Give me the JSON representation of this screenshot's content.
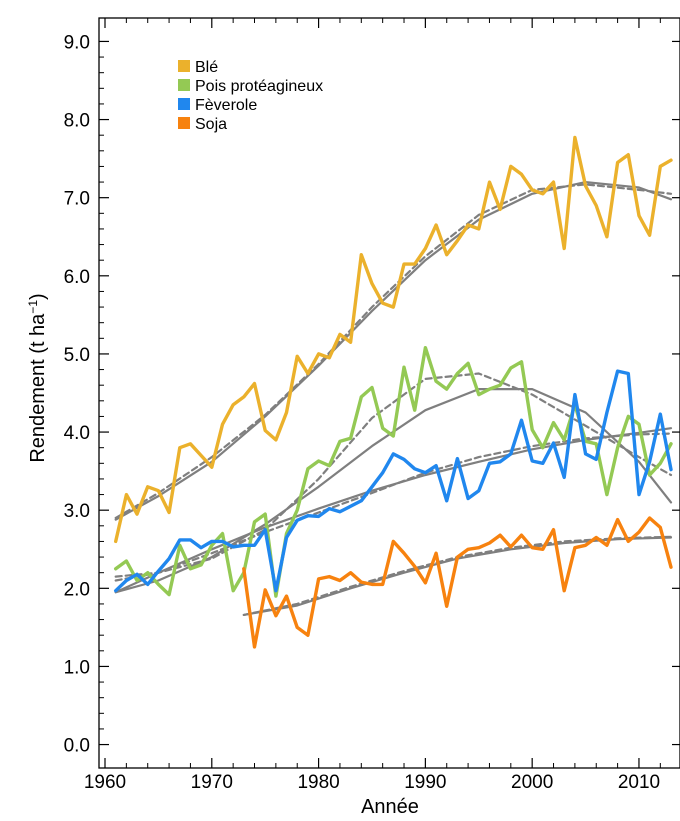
{
  "chart_data": {
    "type": "line",
    "xlabel": "Année",
    "ylabel": "Rendement (t ha",
    "ylabel_superscript": "−1",
    "ylabel_close": ")",
    "xlim": [
      1960,
      2013
    ],
    "ylim": [
      -0.3,
      9.3
    ],
    "x_ticks": [
      1960,
      1970,
      1980,
      1990,
      2000,
      2010
    ],
    "x_tick_labels": [
      "1960",
      "1970",
      "1980",
      "1990",
      "2000",
      "2010"
    ],
    "y_ticks": [
      0,
      1,
      2,
      3,
      4,
      5,
      6,
      7,
      8,
      9
    ],
    "y_tick_labels": [
      "0.0",
      "1.0",
      "2.0",
      "3.0",
      "4.0",
      "5.0",
      "6.0",
      "7.0",
      "8.0",
      "9.0"
    ],
    "grid": false,
    "legend_position": "top-left",
    "trend_color": "#7f7f7f",
    "series": [
      {
        "name": "Blé",
        "color": "#EBB12C",
        "x": [
          1961,
          1962,
          1963,
          1964,
          1965,
          1966,
          1967,
          1968,
          1969,
          1970,
          1971,
          1972,
          1973,
          1974,
          1975,
          1976,
          1977,
          1978,
          1979,
          1980,
          1981,
          1982,
          1983,
          1984,
          1985,
          1986,
          1987,
          1988,
          1989,
          1990,
          1991,
          1992,
          1993,
          1994,
          1995,
          1996,
          1997,
          1998,
          1999,
          2000,
          2001,
          2002,
          2003,
          2004,
          2005,
          2006,
          2007,
          2008,
          2009,
          2010,
          2011,
          2012,
          2013
        ],
        "values": [
          2.6,
          3.2,
          2.95,
          3.3,
          3.25,
          2.97,
          3.8,
          3.85,
          3.7,
          3.55,
          4.1,
          4.35,
          4.45,
          4.62,
          4.02,
          3.9,
          4.25,
          4.97,
          4.75,
          5.0,
          4.95,
          5.25,
          5.15,
          6.27,
          5.9,
          5.65,
          5.6,
          6.15,
          6.15,
          6.35,
          6.65,
          6.27,
          6.45,
          6.65,
          6.6,
          7.2,
          6.85,
          7.4,
          7.3,
          7.1,
          7.05,
          7.2,
          6.35,
          7.77,
          7.15,
          6.9,
          6.5,
          7.45,
          7.55,
          6.77,
          6.52,
          7.4,
          7.48
        ]
      },
      {
        "name": "Pois protéagineux",
        "color": "#94C954",
        "x": [
          1961,
          1962,
          1963,
          1964,
          1965,
          1966,
          1967,
          1968,
          1969,
          1970,
          1971,
          1972,
          1973,
          1974,
          1975,
          1976,
          1977,
          1978,
          1979,
          1980,
          1981,
          1982,
          1983,
          1984,
          1985,
          1986,
          1987,
          1988,
          1989,
          1990,
          1991,
          1992,
          1993,
          1994,
          1995,
          1996,
          1997,
          1998,
          1999,
          2000,
          2001,
          2002,
          2003,
          2004,
          2005,
          2006,
          2007,
          2008,
          2009,
          2010,
          2011,
          2012,
          2013
        ],
        "values": [
          2.25,
          2.35,
          2.1,
          2.2,
          2.05,
          1.92,
          2.55,
          2.25,
          2.3,
          2.55,
          2.7,
          1.97,
          2.2,
          2.85,
          2.95,
          1.9,
          2.7,
          3.0,
          3.53,
          3.63,
          3.57,
          3.88,
          3.92,
          4.45,
          4.57,
          4.05,
          3.95,
          4.83,
          4.28,
          5.08,
          4.65,
          4.55,
          4.75,
          4.88,
          4.48,
          4.55,
          4.6,
          4.82,
          4.9,
          4.03,
          3.8,
          4.12,
          3.9,
          4.35,
          3.88,
          3.85,
          3.2,
          3.8,
          4.2,
          4.1,
          3.45,
          3.6,
          3.85
        ]
      },
      {
        "name": "Fèverole",
        "color": "#2087EE",
        "x": [
          1961,
          1962,
          1963,
          1964,
          1965,
          1966,
          1967,
          1968,
          1969,
          1970,
          1971,
          1972,
          1973,
          1974,
          1975,
          1976,
          1977,
          1978,
          1979,
          1980,
          1981,
          1982,
          1983,
          1984,
          1985,
          1986,
          1987,
          1988,
          1989,
          1990,
          1991,
          1992,
          1993,
          1994,
          1995,
          1996,
          1997,
          1998,
          1999,
          2000,
          2001,
          2002,
          2003,
          2004,
          2005,
          2006,
          2007,
          2008,
          2009,
          2010,
          2011,
          2012,
          2013
        ],
        "values": [
          1.97,
          2.1,
          2.18,
          2.05,
          2.22,
          2.38,
          2.62,
          2.62,
          2.52,
          2.6,
          2.6,
          2.53,
          2.55,
          2.55,
          2.75,
          1.97,
          2.65,
          2.87,
          2.93,
          2.92,
          3.02,
          2.98,
          3.05,
          3.12,
          3.3,
          3.48,
          3.72,
          3.65,
          3.53,
          3.48,
          3.57,
          3.12,
          3.66,
          3.15,
          3.25,
          3.6,
          3.62,
          3.72,
          4.15,
          3.63,
          3.6,
          3.86,
          3.42,
          4.48,
          3.72,
          3.65,
          4.25,
          4.78,
          4.75,
          3.2,
          3.62,
          4.23,
          3.52
        ]
      },
      {
        "name": "Soja",
        "color": "#F7820F",
        "x": [
          1973,
          1974,
          1975,
          1976,
          1977,
          1978,
          1979,
          1980,
          1981,
          1982,
          1983,
          1984,
          1985,
          1986,
          1987,
          1988,
          1989,
          1990,
          1991,
          1992,
          1993,
          1994,
          1995,
          1996,
          1997,
          1998,
          1999,
          2000,
          2001,
          2002,
          2003,
          2004,
          2005,
          2006,
          2007,
          2008,
          2009,
          2010,
          2011,
          2012,
          2013
        ],
        "values": [
          2.25,
          1.25,
          1.98,
          1.65,
          1.9,
          1.5,
          1.4,
          2.12,
          2.15,
          2.1,
          2.2,
          2.08,
          2.05,
          2.05,
          2.6,
          2.45,
          2.28,
          2.07,
          2.45,
          1.77,
          2.4,
          2.5,
          2.52,
          2.58,
          2.68,
          2.53,
          2.68,
          2.52,
          2.5,
          2.75,
          1.97,
          2.52,
          2.55,
          2.65,
          2.55,
          2.88,
          2.6,
          2.72,
          2.9,
          2.78,
          2.27
        ]
      }
    ],
    "trend_lines": [
      {
        "style": "solid",
        "x": [
          1961,
          1965,
          1970,
          1975,
          1980,
          1985,
          1990,
          1995,
          2000,
          2005,
          2010,
          2013
        ],
        "values": [
          2.88,
          3.18,
          3.62,
          4.2,
          4.85,
          5.55,
          6.2,
          6.72,
          7.05,
          7.2,
          7.13,
          6.98
        ]
      },
      {
        "style": "dashed",
        "x": [
          1961,
          1965,
          1970,
          1975,
          1980,
          1985,
          1990,
          1995,
          2000,
          2005,
          2010,
          2013
        ],
        "values": [
          2.9,
          3.22,
          3.68,
          4.22,
          4.87,
          5.6,
          6.25,
          6.78,
          7.1,
          7.17,
          7.1,
          7.05
        ]
      },
      {
        "style": "solid",
        "x": [
          1961,
          1965,
          1970,
          1975,
          1980,
          1985,
          1990,
          1995,
          2000,
          2005,
          2010,
          2013
        ],
        "values": [
          1.95,
          2.1,
          2.4,
          2.82,
          3.3,
          3.82,
          4.28,
          4.55,
          4.55,
          4.25,
          3.62,
          3.1
        ]
      },
      {
        "style": "dashed",
        "x": [
          1961,
          1965,
          1970,
          1975,
          1980,
          1985,
          1990,
          1995,
          2000,
          2005,
          2010,
          2013
        ],
        "values": [
          2.15,
          2.2,
          2.38,
          2.75,
          3.4,
          4.18,
          4.68,
          4.75,
          4.48,
          4.08,
          3.68,
          3.45
        ]
      },
      {
        "style": "solid",
        "x": [
          1961,
          1965,
          1970,
          1975,
          1980,
          1985,
          1990,
          1995,
          2000,
          2005,
          2010,
          2013
        ],
        "values": [
          1.95,
          2.2,
          2.5,
          2.78,
          3.02,
          3.25,
          3.45,
          3.62,
          3.78,
          3.9,
          3.99,
          4.05
        ]
      },
      {
        "style": "dashed",
        "x": [
          1961,
          1965,
          1970,
          1975,
          1980,
          1985,
          1990,
          1995,
          2000,
          2005,
          2010,
          2013
        ],
        "values": [
          2.1,
          2.2,
          2.45,
          2.72,
          2.97,
          3.22,
          3.48,
          3.68,
          3.82,
          3.92,
          3.97,
          3.98
        ]
      },
      {
        "style": "solid",
        "x": [
          1973,
          1978,
          1983,
          1988,
          1993,
          1998,
          2003,
          2008,
          2013
        ],
        "values": [
          1.66,
          1.78,
          2.0,
          2.2,
          2.38,
          2.5,
          2.58,
          2.63,
          2.65
        ]
      },
      {
        "style": "dashed",
        "x": [
          1973,
          1978,
          1983,
          1988,
          1993,
          1998,
          2003,
          2008,
          2013
        ],
        "values": [
          1.66,
          1.8,
          2.02,
          2.22,
          2.4,
          2.52,
          2.6,
          2.64,
          2.66
        ]
      }
    ]
  }
}
